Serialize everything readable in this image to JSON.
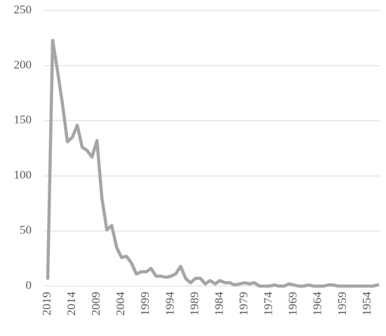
{
  "chart_data": {
    "type": "line",
    "x": [
      2019,
      2018,
      2017,
      2016,
      2015,
      2014,
      2013,
      2012,
      2011,
      2010,
      2009,
      2008,
      2007,
      2006,
      2005,
      2004,
      2003,
      2002,
      2001,
      2000,
      1999,
      1998,
      1997,
      1996,
      1995,
      1994,
      1993,
      1992,
      1991,
      1990,
      1989,
      1988,
      1987,
      1986,
      1985,
      1984,
      1983,
      1982,
      1981,
      1980,
      1979,
      1978,
      1977,
      1976,
      1975,
      1974,
      1973,
      1972,
      1971,
      1970,
      1969,
      1968,
      1967,
      1966,
      1965,
      1964,
      1963,
      1962,
      1961,
      1960,
      1959,
      1958,
      1957,
      1956,
      1955,
      1954,
      1953,
      1952
    ],
    "series": [
      {
        "color": "#a5a5a5",
        "values": [
          7,
          223,
          195,
          165,
          131,
          135,
          146,
          126,
          123,
          117,
          132,
          80,
          51,
          55,
          35,
          26,
          27,
          21,
          11,
          13,
          13,
          16,
          9,
          9,
          8,
          9,
          11,
          18,
          7,
          3,
          7,
          7,
          2,
          5,
          2,
          5,
          3,
          3,
          1,
          2,
          3,
          2,
          3,
          0,
          0,
          0,
          1,
          0,
          0,
          2,
          1,
          0,
          0,
          1,
          0,
          0,
          0,
          1,
          1,
          0,
          0,
          0,
          0,
          0,
          0,
          0,
          0,
          1
        ]
      }
    ],
    "xlim": [
      2019,
      1952
    ],
    "xticks": [
      2019,
      2014,
      2009,
      2004,
      1999,
      1994,
      1989,
      1984,
      1979,
      1974,
      1969,
      1964,
      1959,
      1954
    ],
    "ylim": [
      0,
      250
    ],
    "yticks": [
      0,
      50,
      100,
      150,
      200,
      250
    ],
    "grid": true
  }
}
